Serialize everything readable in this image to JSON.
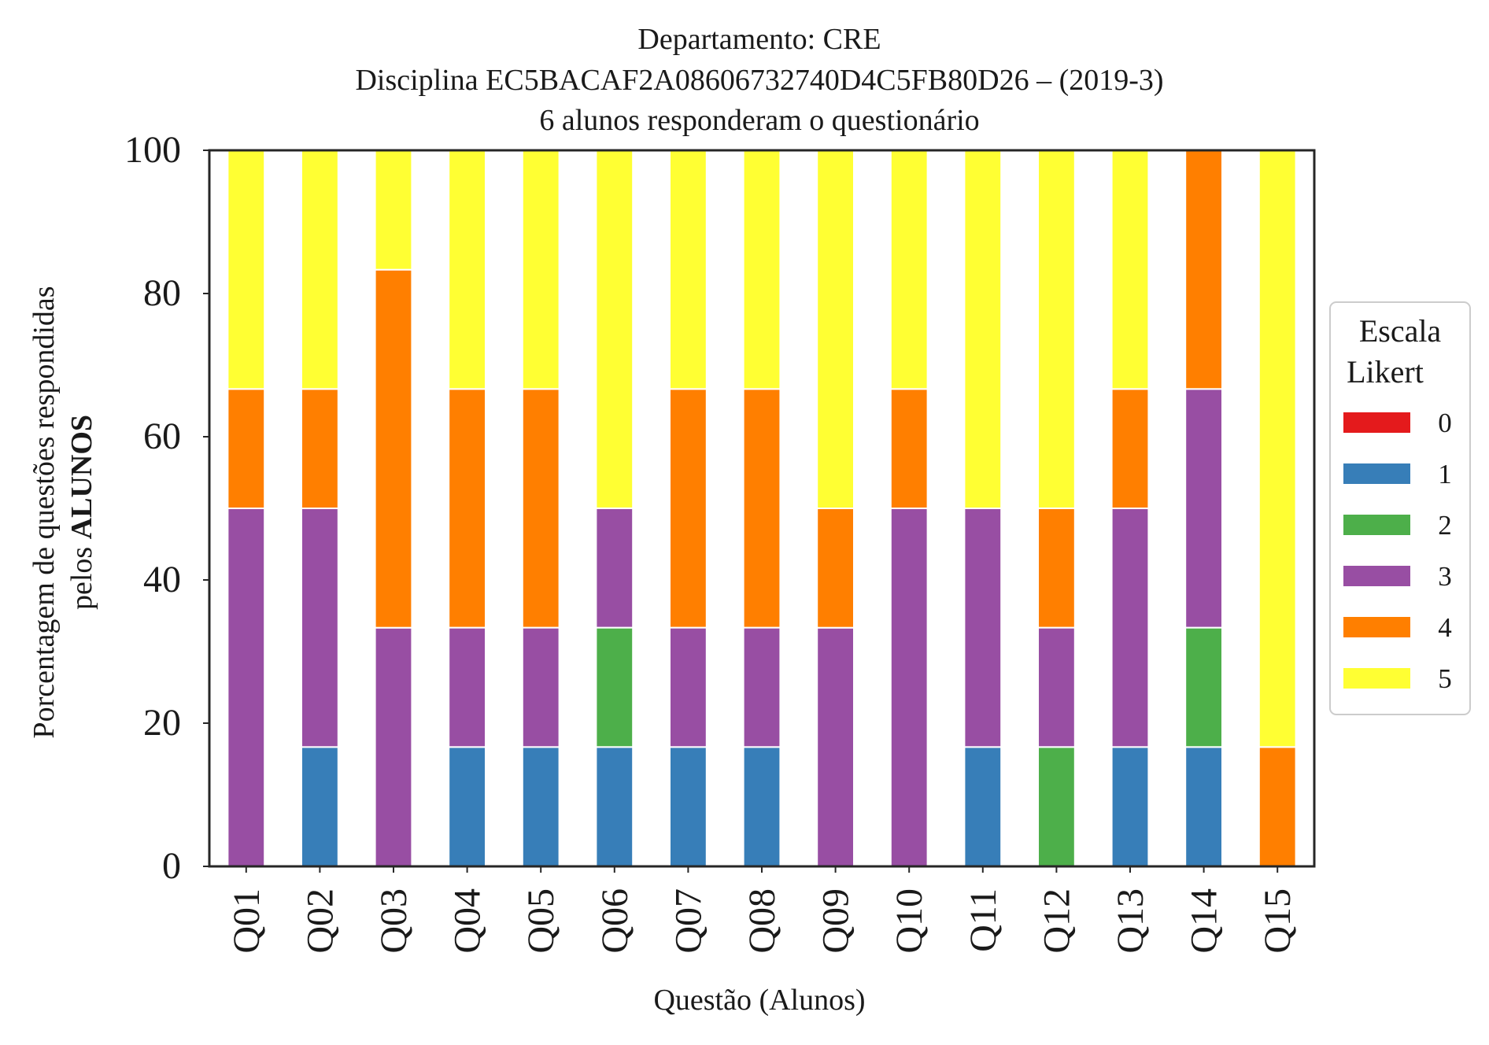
{
  "chart_data": {
    "type": "bar",
    "stacked": true,
    "title": [
      "Departamento: CRE",
      "Disciplina EC5BACAF2A08606732740D4C5FB80D26 – (2019-3)",
      "6 alunos responderam o questionário"
    ],
    "xlabel": "Questão (Alunos)",
    "ylabel_line1": "Porcentagem de questões respondidas",
    "ylabel_line2_prefix": "pelos ",
    "ylabel_line2_bold": "ALUNOS",
    "ylim": [
      0,
      100
    ],
    "yticks": [
      0,
      20,
      40,
      60,
      80,
      100
    ],
    "grid": false,
    "categories": [
      "Q01",
      "Q02",
      "Q03",
      "Q04",
      "Q05",
      "Q06",
      "Q07",
      "Q08",
      "Q09",
      "Q10",
      "Q11",
      "Q12",
      "Q13",
      "Q14",
      "Q15"
    ],
    "legend": {
      "title_line1": "Escala",
      "title_line2": "Likert",
      "placement": "center-right outside"
    },
    "series": [
      {
        "name": "0",
        "color": "#e41a1c",
        "values": [
          0,
          0,
          0,
          0,
          0,
          0,
          0,
          0,
          0,
          0,
          0,
          0,
          0,
          0,
          0
        ]
      },
      {
        "name": "1",
        "color": "#377eb8",
        "values": [
          0,
          16.67,
          0,
          16.67,
          16.67,
          16.67,
          16.67,
          16.67,
          0,
          0,
          16.67,
          0,
          16.67,
          16.67,
          0
        ]
      },
      {
        "name": "2",
        "color": "#4daf4a",
        "values": [
          0,
          0,
          0,
          0,
          0,
          16.67,
          0,
          0,
          0,
          0,
          0,
          16.67,
          0,
          16.67,
          0
        ]
      },
      {
        "name": "3",
        "color": "#984ea3",
        "values": [
          50,
          33.33,
          33.33,
          16.67,
          16.67,
          16.67,
          16.67,
          16.67,
          33.33,
          50,
          33.33,
          16.67,
          33.33,
          33.33,
          0
        ]
      },
      {
        "name": "4",
        "color": "#ff7f00",
        "values": [
          16.67,
          16.67,
          50,
          33.33,
          33.33,
          0,
          33.33,
          33.33,
          16.67,
          16.67,
          0,
          16.67,
          16.67,
          33.33,
          16.67
        ]
      },
      {
        "name": "5",
        "color": "#ffff33",
        "values": [
          33.33,
          33.33,
          16.67,
          33.33,
          33.33,
          50,
          33.33,
          33.33,
          50,
          33.33,
          50,
          50,
          33.33,
          0,
          83.33
        ]
      }
    ]
  }
}
